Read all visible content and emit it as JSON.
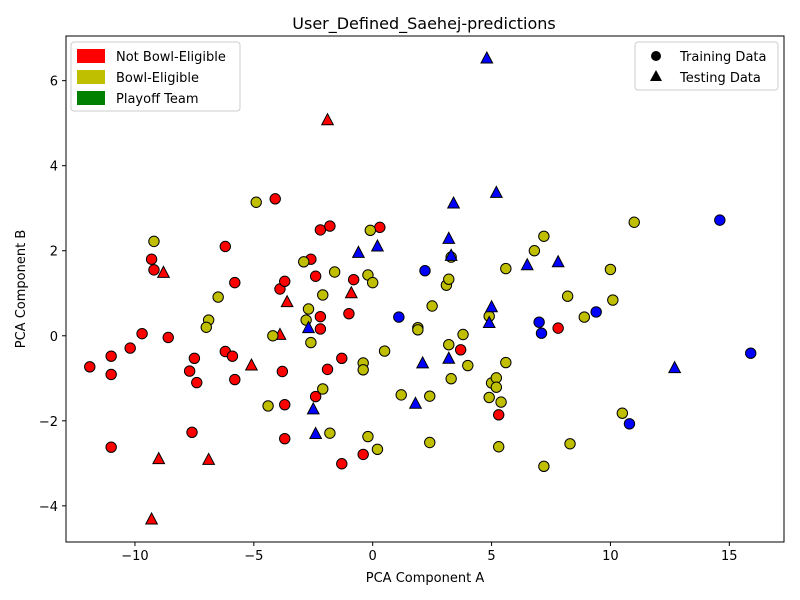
{
  "chart_data": {
    "type": "scatter",
    "title": "User_Defined_Saehej-predictions",
    "xlabel": "PCA Component A",
    "ylabel": "PCA Component B",
    "xlim": [
      -12.9,
      17.3
    ],
    "ylim": [
      -4.85,
      7.05
    ],
    "xticks": [
      -10,
      -5,
      0,
      5,
      10,
      15
    ],
    "yticks": [
      -4,
      -2,
      0,
      2,
      4,
      6
    ],
    "grid": false,
    "color_legend": {
      "placement": "top-left",
      "entries": [
        {
          "label": "Not Bowl-Eligible",
          "color": "#ff0000"
        },
        {
          "label": "Bowl-Eligible",
          "color": "#bfbf00"
        },
        {
          "label": "Playoff Team",
          "color": "#008000"
        }
      ]
    },
    "marker_legend": {
      "placement": "top-right",
      "entries": [
        {
          "label": "Training Data",
          "marker": "circle"
        },
        {
          "label": "Testing Data",
          "marker": "triangle"
        }
      ]
    },
    "colors": {
      "red": "#ff0000",
      "olive": "#bfbf00",
      "blue": "#0000ff"
    },
    "points": [
      {
        "x": -11.9,
        "y": -0.73,
        "c": "red",
        "m": "circle"
      },
      {
        "x": -11.0,
        "y": -0.48,
        "c": "red",
        "m": "circle"
      },
      {
        "x": -11.0,
        "y": -0.91,
        "c": "red",
        "m": "circle"
      },
      {
        "x": -11.0,
        "y": -2.62,
        "c": "red",
        "m": "circle"
      },
      {
        "x": -10.2,
        "y": -0.29,
        "c": "red",
        "m": "circle"
      },
      {
        "x": -9.7,
        "y": 0.05,
        "c": "red",
        "m": "circle"
      },
      {
        "x": -9.3,
        "y": 1.8,
        "c": "red",
        "m": "circle"
      },
      {
        "x": -9.2,
        "y": 1.55,
        "c": "red",
        "m": "circle"
      },
      {
        "x": -8.6,
        "y": -0.04,
        "c": "red",
        "m": "circle"
      },
      {
        "x": -7.7,
        "y": -0.83,
        "c": "red",
        "m": "circle"
      },
      {
        "x": -7.6,
        "y": -2.27,
        "c": "red",
        "m": "circle"
      },
      {
        "x": -7.5,
        "y": -0.53,
        "c": "red",
        "m": "circle"
      },
      {
        "x": -7.4,
        "y": -1.1,
        "c": "red",
        "m": "circle"
      },
      {
        "x": -6.2,
        "y": -0.37,
        "c": "red",
        "m": "circle"
      },
      {
        "x": -6.2,
        "y": 2.1,
        "c": "red",
        "m": "circle"
      },
      {
        "x": -5.9,
        "y": -0.48,
        "c": "red",
        "m": "circle"
      },
      {
        "x": -5.8,
        "y": 1.25,
        "c": "red",
        "m": "circle"
      },
      {
        "x": -5.8,
        "y": -1.03,
        "c": "red",
        "m": "circle"
      },
      {
        "x": -4.1,
        "y": 3.22,
        "c": "red",
        "m": "circle"
      },
      {
        "x": -3.9,
        "y": 1.1,
        "c": "red",
        "m": "circle"
      },
      {
        "x": -3.8,
        "y": -0.84,
        "c": "red",
        "m": "circle"
      },
      {
        "x": -3.7,
        "y": 1.28,
        "c": "red",
        "m": "circle"
      },
      {
        "x": -3.7,
        "y": -1.62,
        "c": "red",
        "m": "circle"
      },
      {
        "x": -3.7,
        "y": -2.42,
        "c": "red",
        "m": "circle"
      },
      {
        "x": -2.6,
        "y": 1.8,
        "c": "red",
        "m": "circle"
      },
      {
        "x": -2.4,
        "y": 1.4,
        "c": "red",
        "m": "circle"
      },
      {
        "x": -2.4,
        "y": -1.43,
        "c": "red",
        "m": "circle"
      },
      {
        "x": -2.2,
        "y": 2.49,
        "c": "red",
        "m": "circle"
      },
      {
        "x": -2.2,
        "y": 0.45,
        "c": "red",
        "m": "circle"
      },
      {
        "x": -2.2,
        "y": 0.16,
        "c": "red",
        "m": "circle"
      },
      {
        "x": -1.8,
        "y": 2.58,
        "c": "red",
        "m": "circle"
      },
      {
        "x": -1.9,
        "y": -0.79,
        "c": "red",
        "m": "circle"
      },
      {
        "x": -1.3,
        "y": -0.53,
        "c": "red",
        "m": "circle"
      },
      {
        "x": -1.3,
        "y": -3.01,
        "c": "red",
        "m": "circle"
      },
      {
        "x": -1.0,
        "y": 0.52,
        "c": "red",
        "m": "circle"
      },
      {
        "x": -0.8,
        "y": 1.32,
        "c": "red",
        "m": "circle"
      },
      {
        "x": -0.4,
        "y": -2.79,
        "c": "red",
        "m": "circle"
      },
      {
        "x": 0.3,
        "y": 2.55,
        "c": "red",
        "m": "circle"
      },
      {
        "x": 3.7,
        "y": -0.33,
        "c": "red",
        "m": "circle"
      },
      {
        "x": 5.3,
        "y": -1.86,
        "c": "red",
        "m": "circle"
      },
      {
        "x": 7.8,
        "y": 0.18,
        "c": "red",
        "m": "circle"
      },
      {
        "x": -9.3,
        "y": -4.32,
        "c": "red",
        "m": "triangle"
      },
      {
        "x": -9.0,
        "y": -2.9,
        "c": "red",
        "m": "triangle"
      },
      {
        "x": -8.8,
        "y": 1.48,
        "c": "red",
        "m": "triangle"
      },
      {
        "x": -6.9,
        "y": -2.92,
        "c": "red",
        "m": "triangle"
      },
      {
        "x": -5.1,
        "y": -0.7,
        "c": "red",
        "m": "triangle"
      },
      {
        "x": -3.9,
        "y": 0.02,
        "c": "red",
        "m": "triangle"
      },
      {
        "x": -3.6,
        "y": 0.79,
        "c": "red",
        "m": "triangle"
      },
      {
        "x": -1.9,
        "y": 5.07,
        "c": "red",
        "m": "triangle"
      },
      {
        "x": -0.9,
        "y": 1.0,
        "c": "red",
        "m": "triangle"
      },
      {
        "x": -9.2,
        "y": 2.22,
        "c": "olive",
        "m": "circle"
      },
      {
        "x": -6.9,
        "y": 0.37,
        "c": "olive",
        "m": "circle"
      },
      {
        "x": -7.0,
        "y": 0.2,
        "c": "olive",
        "m": "circle"
      },
      {
        "x": -6.5,
        "y": 0.91,
        "c": "olive",
        "m": "circle"
      },
      {
        "x": -4.9,
        "y": 3.14,
        "c": "olive",
        "m": "circle"
      },
      {
        "x": -4.4,
        "y": -1.65,
        "c": "olive",
        "m": "circle"
      },
      {
        "x": -4.2,
        "y": 0.0,
        "c": "olive",
        "m": "circle"
      },
      {
        "x": -2.9,
        "y": 1.74,
        "c": "olive",
        "m": "circle"
      },
      {
        "x": -2.7,
        "y": 0.63,
        "c": "olive",
        "m": "circle"
      },
      {
        "x": -2.8,
        "y": 0.37,
        "c": "olive",
        "m": "circle"
      },
      {
        "x": -2.6,
        "y": -0.16,
        "c": "olive",
        "m": "circle"
      },
      {
        "x": -2.1,
        "y": 0.96,
        "c": "olive",
        "m": "circle"
      },
      {
        "x": -2.1,
        "y": -1.25,
        "c": "olive",
        "m": "circle"
      },
      {
        "x": -1.8,
        "y": -2.29,
        "c": "olive",
        "m": "circle"
      },
      {
        "x": -1.6,
        "y": 1.5,
        "c": "olive",
        "m": "circle"
      },
      {
        "x": -0.4,
        "y": -0.64,
        "c": "olive",
        "m": "circle"
      },
      {
        "x": -0.4,
        "y": -0.8,
        "c": "olive",
        "m": "circle"
      },
      {
        "x": -0.1,
        "y": 2.48,
        "c": "olive",
        "m": "circle"
      },
      {
        "x": -0.2,
        "y": 1.43,
        "c": "olive",
        "m": "circle"
      },
      {
        "x": 0.0,
        "y": 1.25,
        "c": "olive",
        "m": "circle"
      },
      {
        "x": -0.2,
        "y": -2.37,
        "c": "olive",
        "m": "circle"
      },
      {
        "x": 0.2,
        "y": -2.67,
        "c": "olive",
        "m": "circle"
      },
      {
        "x": 0.5,
        "y": -0.36,
        "c": "olive",
        "m": "circle"
      },
      {
        "x": 1.2,
        "y": -1.39,
        "c": "olive",
        "m": "circle"
      },
      {
        "x": 1.9,
        "y": 0.19,
        "c": "olive",
        "m": "circle"
      },
      {
        "x": 1.9,
        "y": 0.14,
        "c": "olive",
        "m": "circle"
      },
      {
        "x": 2.4,
        "y": -1.42,
        "c": "olive",
        "m": "circle"
      },
      {
        "x": 2.4,
        "y": -2.51,
        "c": "olive",
        "m": "circle"
      },
      {
        "x": 2.5,
        "y": 0.7,
        "c": "olive",
        "m": "circle"
      },
      {
        "x": 3.1,
        "y": 1.19,
        "c": "olive",
        "m": "circle"
      },
      {
        "x": 3.2,
        "y": 1.33,
        "c": "olive",
        "m": "circle"
      },
      {
        "x": 3.2,
        "y": -0.21,
        "c": "olive",
        "m": "circle"
      },
      {
        "x": 3.3,
        "y": -1.01,
        "c": "olive",
        "m": "circle"
      },
      {
        "x": 3.3,
        "y": 1.85,
        "c": "olive",
        "m": "circle"
      },
      {
        "x": 3.8,
        "y": 0.03,
        "c": "olive",
        "m": "circle"
      },
      {
        "x": 4.0,
        "y": -0.7,
        "c": "olive",
        "m": "circle"
      },
      {
        "x": 4.9,
        "y": 0.46,
        "c": "olive",
        "m": "circle"
      },
      {
        "x": 4.9,
        "y": -1.45,
        "c": "olive",
        "m": "circle"
      },
      {
        "x": 5.0,
        "y": -1.11,
        "c": "olive",
        "m": "circle"
      },
      {
        "x": 5.2,
        "y": -0.99,
        "c": "olive",
        "m": "circle"
      },
      {
        "x": 5.2,
        "y": -1.21,
        "c": "olive",
        "m": "circle"
      },
      {
        "x": 5.3,
        "y": -2.61,
        "c": "olive",
        "m": "circle"
      },
      {
        "x": 5.4,
        "y": -1.56,
        "c": "olive",
        "m": "circle"
      },
      {
        "x": 5.6,
        "y": 1.58,
        "c": "olive",
        "m": "circle"
      },
      {
        "x": 5.6,
        "y": -0.63,
        "c": "olive",
        "m": "circle"
      },
      {
        "x": 6.8,
        "y": 2.0,
        "c": "olive",
        "m": "circle"
      },
      {
        "x": 7.2,
        "y": 2.34,
        "c": "olive",
        "m": "circle"
      },
      {
        "x": 7.2,
        "y": -3.07,
        "c": "olive",
        "m": "circle"
      },
      {
        "x": 8.2,
        "y": 0.93,
        "c": "olive",
        "m": "circle"
      },
      {
        "x": 8.3,
        "y": -2.54,
        "c": "olive",
        "m": "circle"
      },
      {
        "x": 8.9,
        "y": 0.44,
        "c": "olive",
        "m": "circle"
      },
      {
        "x": 10.0,
        "y": 1.56,
        "c": "olive",
        "m": "circle"
      },
      {
        "x": 10.1,
        "y": 0.84,
        "c": "olive",
        "m": "circle"
      },
      {
        "x": 10.5,
        "y": -1.82,
        "c": "olive",
        "m": "circle"
      },
      {
        "x": 11.0,
        "y": 2.67,
        "c": "olive",
        "m": "circle"
      },
      {
        "x": 1.1,
        "y": 0.44,
        "c": "blue",
        "m": "circle"
      },
      {
        "x": 2.2,
        "y": 1.53,
        "c": "blue",
        "m": "circle"
      },
      {
        "x": 7.0,
        "y": 0.32,
        "c": "blue",
        "m": "circle"
      },
      {
        "x": 7.1,
        "y": 0.06,
        "c": "blue",
        "m": "circle"
      },
      {
        "x": 9.4,
        "y": 0.56,
        "c": "blue",
        "m": "circle"
      },
      {
        "x": 10.8,
        "y": -2.07,
        "c": "blue",
        "m": "circle"
      },
      {
        "x": 14.6,
        "y": 2.72,
        "c": "blue",
        "m": "circle"
      },
      {
        "x": 15.9,
        "y": -0.41,
        "c": "blue",
        "m": "circle"
      },
      {
        "x": -2.7,
        "y": 0.18,
        "c": "blue",
        "m": "triangle"
      },
      {
        "x": -2.5,
        "y": -1.73,
        "c": "blue",
        "m": "triangle"
      },
      {
        "x": -2.4,
        "y": -2.31,
        "c": "blue",
        "m": "triangle"
      },
      {
        "x": -0.6,
        "y": 1.95,
        "c": "blue",
        "m": "triangle"
      },
      {
        "x": 0.2,
        "y": 2.1,
        "c": "blue",
        "m": "triangle"
      },
      {
        "x": 1.8,
        "y": -1.6,
        "c": "blue",
        "m": "triangle"
      },
      {
        "x": 2.1,
        "y": -0.65,
        "c": "blue",
        "m": "triangle"
      },
      {
        "x": 3.2,
        "y": -0.54,
        "c": "blue",
        "m": "triangle"
      },
      {
        "x": 3.2,
        "y": 2.28,
        "c": "blue",
        "m": "triangle"
      },
      {
        "x": 3.3,
        "y": 1.88,
        "c": "blue",
        "m": "triangle"
      },
      {
        "x": 3.4,
        "y": 3.11,
        "c": "blue",
        "m": "triangle"
      },
      {
        "x": 4.8,
        "y": 6.52,
        "c": "blue",
        "m": "triangle"
      },
      {
        "x": 4.9,
        "y": 0.3,
        "c": "blue",
        "m": "triangle"
      },
      {
        "x": 5.0,
        "y": 0.67,
        "c": "blue",
        "m": "triangle"
      },
      {
        "x": 5.2,
        "y": 3.36,
        "c": "blue",
        "m": "triangle"
      },
      {
        "x": 6.5,
        "y": 1.66,
        "c": "blue",
        "m": "triangle"
      },
      {
        "x": 7.8,
        "y": 1.73,
        "c": "blue",
        "m": "triangle"
      },
      {
        "x": 12.7,
        "y": -0.76,
        "c": "blue",
        "m": "triangle"
      }
    ]
  }
}
